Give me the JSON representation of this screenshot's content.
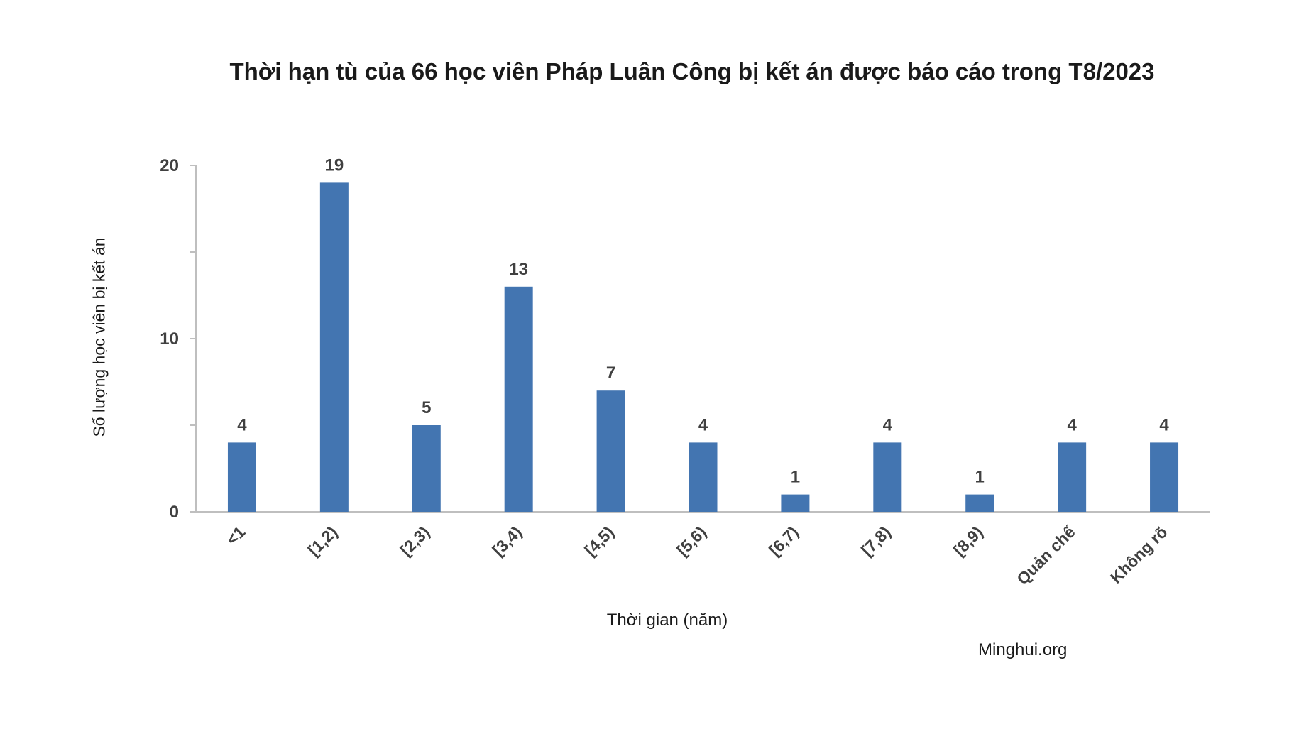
{
  "chart_data": {
    "type": "bar",
    "title": "Thời hạn tù của 66 học viên Pháp Luân Công bị kết án được báo cáo trong T8/2023",
    "xlabel": "Thời gian (năm)",
    "ylabel": "Số lượng học viên bị kết án",
    "categories": [
      "<1",
      "[1,2)",
      "[2,3)",
      "[3,4)",
      "[4,5)",
      "[5,6)",
      "[6,7)",
      "[7,8)",
      "[8,9)",
      "Quản chế",
      "Không rõ"
    ],
    "values": [
      4,
      19,
      5,
      13,
      7,
      4,
      1,
      4,
      1,
      4,
      4
    ],
    "ylim": [
      0,
      20
    ],
    "yticks": [
      0,
      10,
      20
    ],
    "bar_color": "#4375b1",
    "grid": false,
    "legend": "none",
    "source": "Minghui.org"
  }
}
